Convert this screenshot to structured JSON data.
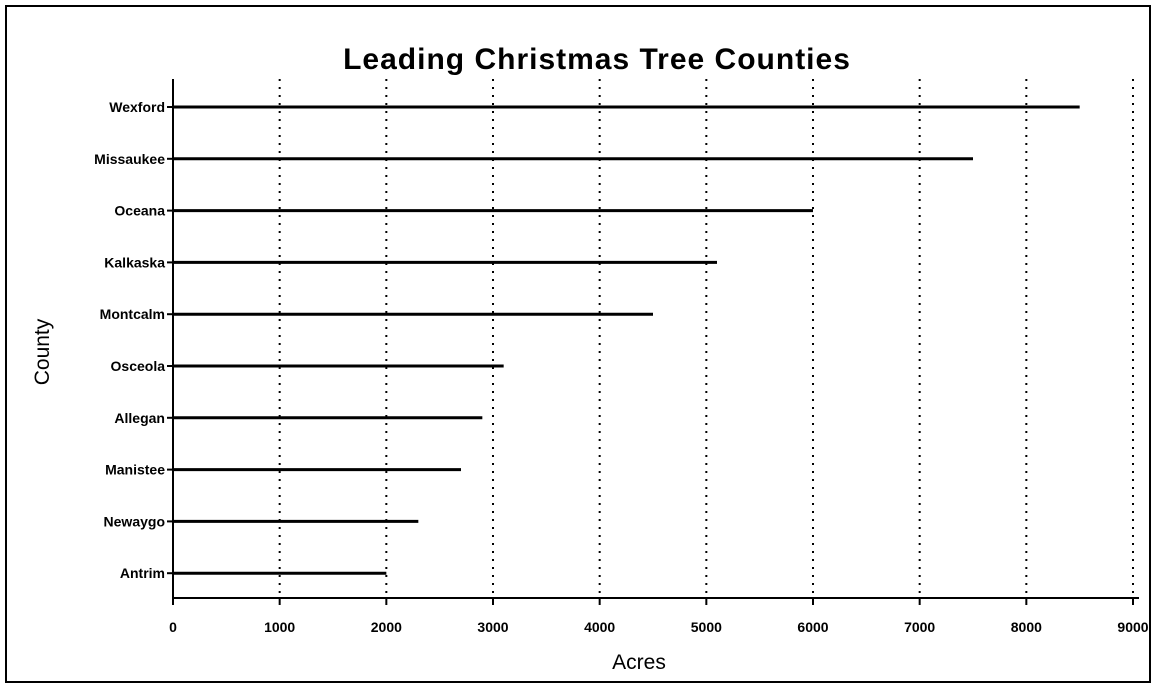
{
  "chart_data": {
    "type": "bar",
    "orientation": "horizontal",
    "title": "Leading Christmas Tree Counties",
    "xlabel": "Acres",
    "ylabel": "County",
    "categories": [
      "Wexford",
      "Missaukee",
      "Oceana",
      "Kalkaska",
      "Montcalm",
      "Osceola",
      "Allegan",
      "Manistee",
      "Newaygo",
      "Antrim"
    ],
    "values": [
      8500,
      7500,
      6000,
      5100,
      4500,
      3100,
      2900,
      2700,
      2300,
      2000
    ],
    "xlim": [
      0,
      9000
    ],
    "xticks": [
      "0",
      "1000",
      "2000",
      "3000",
      "4000",
      "5000",
      "6000",
      "7000",
      "8000",
      "9000"
    ],
    "grid": "vertical dotted",
    "bar_color": "#000000"
  }
}
